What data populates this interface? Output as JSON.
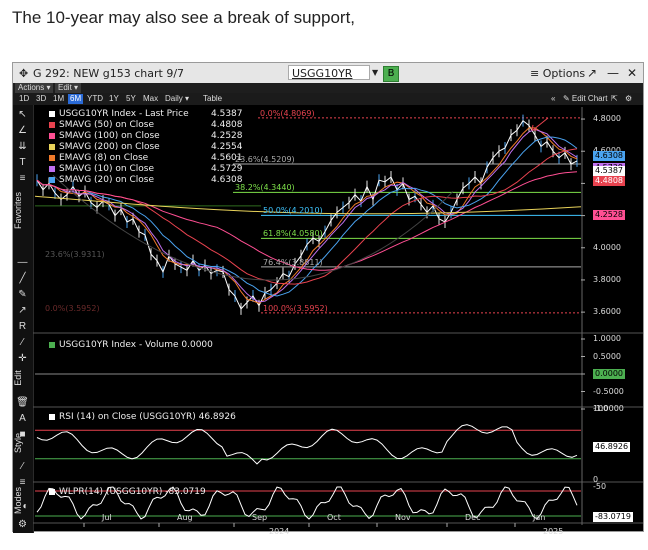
{
  "caption": "The 10-year may also see a break of support,",
  "window": {
    "title": "G 292: NEW g153 chart 9/7",
    "ticker": "USGG10YR Index",
    "ticker_caret": "▼",
    "badge": "B",
    "options": "≡ Options",
    "btn_popout": "↗",
    "btn_min": "—",
    "btn_close": "✕"
  },
  "menus": [
    "Actions ▾",
    "Edit ▾"
  ],
  "ranges": [
    "1D",
    "3D",
    "1M",
    "6M",
    "YTD",
    "1Y",
    "5Y",
    "Max",
    "Daily ▾",
    "Table"
  ],
  "selected_range": "6M",
  "toolbar_right": {
    "collapse": "«",
    "edit_chart": "✎ Edit Chart",
    "zoom": "⇱",
    "gear": "⚙"
  },
  "side_labels": {
    "favorites": "Favorites",
    "edit": "Edit",
    "style": "Style",
    "modes": "Modes"
  },
  "legend": [
    {
      "label": "USGG10YR Index - Last Price",
      "value": "4.5387",
      "color": "#ffffff"
    },
    {
      "label": "SMAVG (50)  on Close",
      "value": "4.4808",
      "color": "#e8434f"
    },
    {
      "label": "SMAVG (100)  on Close",
      "value": "4.2528",
      "color": "#ff4f93"
    },
    {
      "label": "SMAVG (200)  on Close",
      "value": "4.2554",
      "color": "#e8d25a"
    },
    {
      "label": "EMAVG (8)  on Close",
      "value": "4.5601",
      "color": "#f07a2a"
    },
    {
      "label": "SMAVG (10)  on Close",
      "value": "4.5729",
      "color": "#c070f0"
    },
    {
      "label": "SMAVG (20)  on Close",
      "value": "4.6308",
      "color": "#4aa3f0"
    }
  ],
  "price_axis": [
    "4.8000",
    "4.6000",
    "4.4000",
    "4.2000",
    "4.0000",
    "3.8000",
    "3.6000"
  ],
  "price_tags": [
    {
      "text": "4.6308",
      "bg": "#4aa3f0",
      "fg": "#000"
    },
    {
      "text": "4.5729",
      "bg": "#c070f0",
      "fg": "#000"
    },
    {
      "text": "4.5387",
      "bg": "#ffffff",
      "fg": "#000"
    },
    {
      "text": "4.4808",
      "bg": "#e8434f",
      "fg": "#fff"
    },
    {
      "text": "4.2528",
      "bg": "#ff4f93",
      "fg": "#000"
    }
  ],
  "fib_levels": [
    {
      "label": "0.0%(4.8069)",
      "color": "#e8434f"
    },
    {
      "label": "23.6%(4.5209)",
      "color": "#aaaaaa"
    },
    {
      "label": "38.2%(4.3440)",
      "color": "#7ee04a"
    },
    {
      "label": "50.0%(4.2010)",
      "color": "#3fc6ff"
    },
    {
      "label": "61.8%(4.0580)",
      "color": "#7ee04a"
    },
    {
      "label": "76.4%(3.8811)",
      "color": "#aaaaaa"
    },
    {
      "label": "100.0%(3.5952)",
      "color": "#e8434f"
    }
  ],
  "fib_faint": [
    "23.6%(3.9311)",
    "0.0%(3.5952)"
  ],
  "volume": {
    "legend": "USGG10YR Index - Volume  0.0000",
    "axis": [
      "1.0000",
      "0.5000",
      "0.0000",
      "-0.5000",
      "-1.0000"
    ],
    "tag": "0.0000"
  },
  "rsi": {
    "legend": "RSI (14)  on Close (USGG10YR)  46.8926",
    "axis_top": "100",
    "axis_bottom": "0",
    "tag": "46.8926"
  },
  "wlpr": {
    "legend": "WLPR(14) (USGG10YR)  -83.0719",
    "axis_top": "-50",
    "tag": "-83.0719"
  },
  "x_months": [
    "Jul",
    "Aug",
    "Sep",
    "Oct",
    "Nov",
    "Dec",
    "Jan"
  ],
  "x_years": [
    "2024",
    "2025"
  ]
}
